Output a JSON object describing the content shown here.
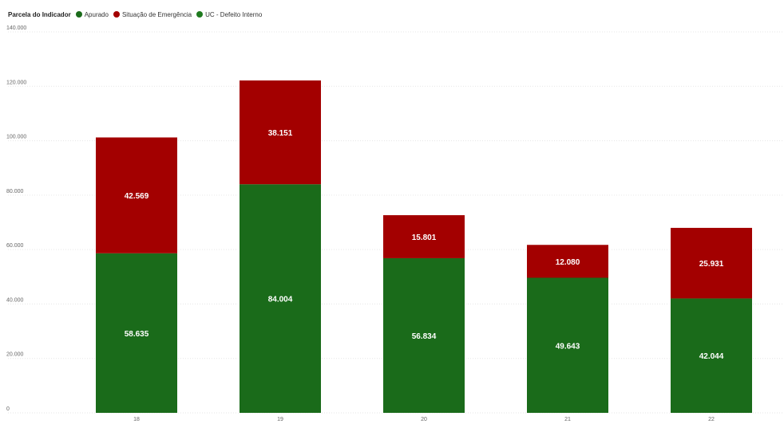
{
  "legend": {
    "title": "Parcela do Indicador"
  },
  "chart_data": {
    "type": "bar",
    "stacked": true,
    "categories": [
      "18",
      "19",
      "20",
      "21",
      "22"
    ],
    "series": [
      {
        "name": "Apurado",
        "color": "#1a6b1a",
        "values": [
          58635,
          84004,
          56834,
          49643,
          42044
        ],
        "labels": [
          "58.635",
          "84.004",
          "56.834",
          "49.643",
          "42.044"
        ]
      },
      {
        "name": "Situação de Emergência",
        "color": "#a30000",
        "values": [
          42569,
          38151,
          15801,
          12080,
          25931
        ],
        "labels": [
          "42.569",
          "38.151",
          "15.801",
          "12.080",
          "25.931"
        ]
      },
      {
        "name": "UC - Defeito Interno",
        "color": "#1f7a1f",
        "values": [
          0,
          0,
          0,
          0,
          0
        ]
      }
    ],
    "ylim": [
      0,
      140000
    ],
    "yticks": [
      0,
      20000,
      40000,
      60000,
      80000,
      100000,
      120000,
      140000
    ],
    "ytick_labels": [
      "0",
      "20.000",
      "40.000",
      "60.000",
      "80.000",
      "100.000",
      "120.000",
      "140.000"
    ],
    "grid": true,
    "legend_position": "top-left",
    "title": "",
    "xlabel": "",
    "ylabel": ""
  }
}
